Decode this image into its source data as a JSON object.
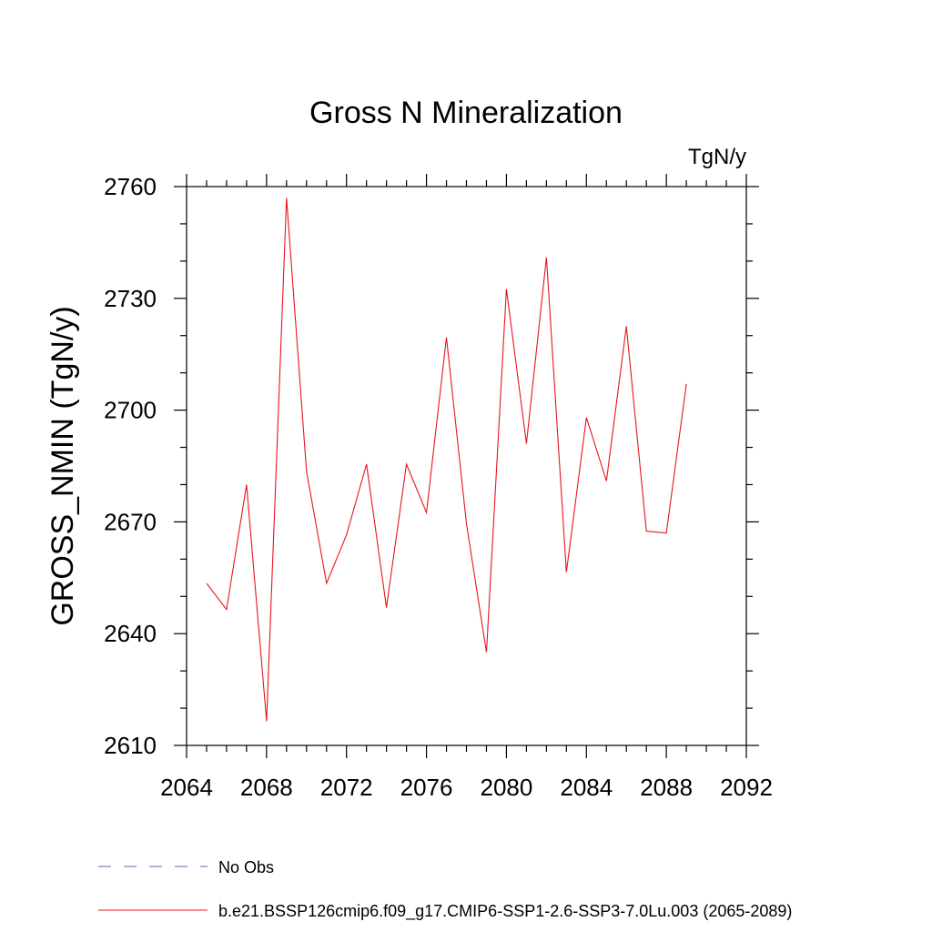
{
  "chart_data": {
    "type": "line",
    "title": "Gross N Mineralization",
    "units_label": "TgN/y",
    "ylabel": "GROSS_NMIN  (TgN/y)",
    "xlabel": "",
    "xlim": [
      2064,
      2092
    ],
    "ylim": [
      2610,
      2760
    ],
    "x_ticks": [
      2064,
      2068,
      2072,
      2076,
      2080,
      2084,
      2088,
      2092
    ],
    "y_ticks": [
      2610,
      2640,
      2670,
      2700,
      2730,
      2760
    ],
    "x_minor_step": 1,
    "y_minor_step": 10,
    "grid": false,
    "series": [
      {
        "name": "b.e21.BSSP126cmip6.f09_g17.CMIP6-SSP1-2.6-SSP3-7.0Lu.003 (2065-2089)",
        "color": "#e8141c",
        "dash": "solid",
        "x": [
          2065,
          2066,
          2067,
          2068,
          2069,
          2070,
          2071,
          2072,
          2073,
          2074,
          2075,
          2076,
          2077,
          2078,
          2079,
          2080,
          2081,
          2082,
          2083,
          2084,
          2085,
          2086,
          2087,
          2088,
          2089
        ],
        "y": [
          2653.5,
          2646.5,
          2680,
          2616.5,
          2757,
          2683.5,
          2653.5,
          2666.5,
          2685.5,
          2647,
          2685.5,
          2672.5,
          2719.5,
          2669.5,
          2635,
          2732.5,
          2691,
          2741,
          2656.5,
          2698,
          2681,
          2722.5,
          2667.5,
          2667,
          2707
        ]
      }
    ],
    "legend": {
      "placement": "bottom-left",
      "entries": [
        {
          "label": "No Obs",
          "color": "#6a60b8",
          "dash": "dashed"
        },
        {
          "label": "b.e21.BSSP126cmip6.f09_g17.CMIP6-SSP1-2.6-SSP3-7.0Lu.003 (2065-2089)",
          "color": "#e8141c",
          "dash": "solid"
        }
      ]
    }
  }
}
